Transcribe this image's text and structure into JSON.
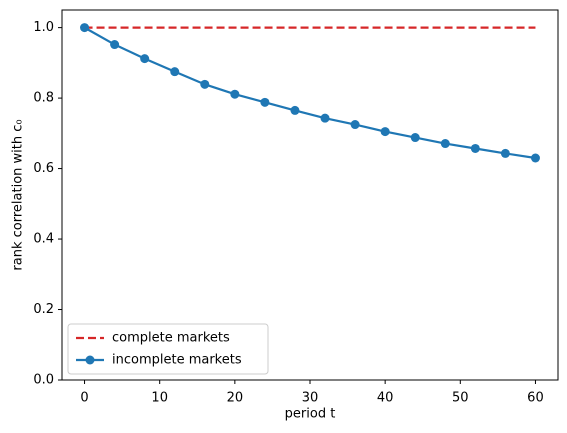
{
  "chart_data": {
    "type": "line",
    "xlabel": "period t",
    "ylabel": "rank correlation with c₀",
    "x": [
      0,
      4,
      8,
      12,
      16,
      20,
      24,
      28,
      32,
      36,
      40,
      44,
      48,
      52,
      56,
      60
    ],
    "series": [
      {
        "name": "complete markets",
        "color": "#d62728",
        "linestyle": "dashed",
        "marker": false,
        "values": [
          1.0,
          1.0,
          1.0,
          1.0,
          1.0,
          1.0,
          1.0,
          1.0,
          1.0,
          1.0,
          1.0,
          1.0,
          1.0,
          1.0,
          1.0,
          1.0
        ]
      },
      {
        "name": "incomplete markets",
        "color": "#1f77b4",
        "linestyle": "solid",
        "marker": true,
        "values": [
          1.0,
          0.952,
          0.912,
          0.875,
          0.839,
          0.811,
          0.788,
          0.765,
          0.743,
          0.725,
          0.705,
          0.688,
          0.671,
          0.657,
          0.643,
          0.63
        ]
      }
    ],
    "xlim": [
      -3,
      63
    ],
    "xticks": [
      0,
      10,
      20,
      30,
      40,
      50,
      60
    ],
    "ylim": [
      0,
      1.05
    ],
    "yticks": [
      {
        "value": 0,
        "label": "0.0"
      },
      0.2,
      0.4,
      0.6,
      0.8,
      {
        "value": 1,
        "label": "1.0"
      }
    ],
    "grid": false,
    "legend": "lower left"
  }
}
